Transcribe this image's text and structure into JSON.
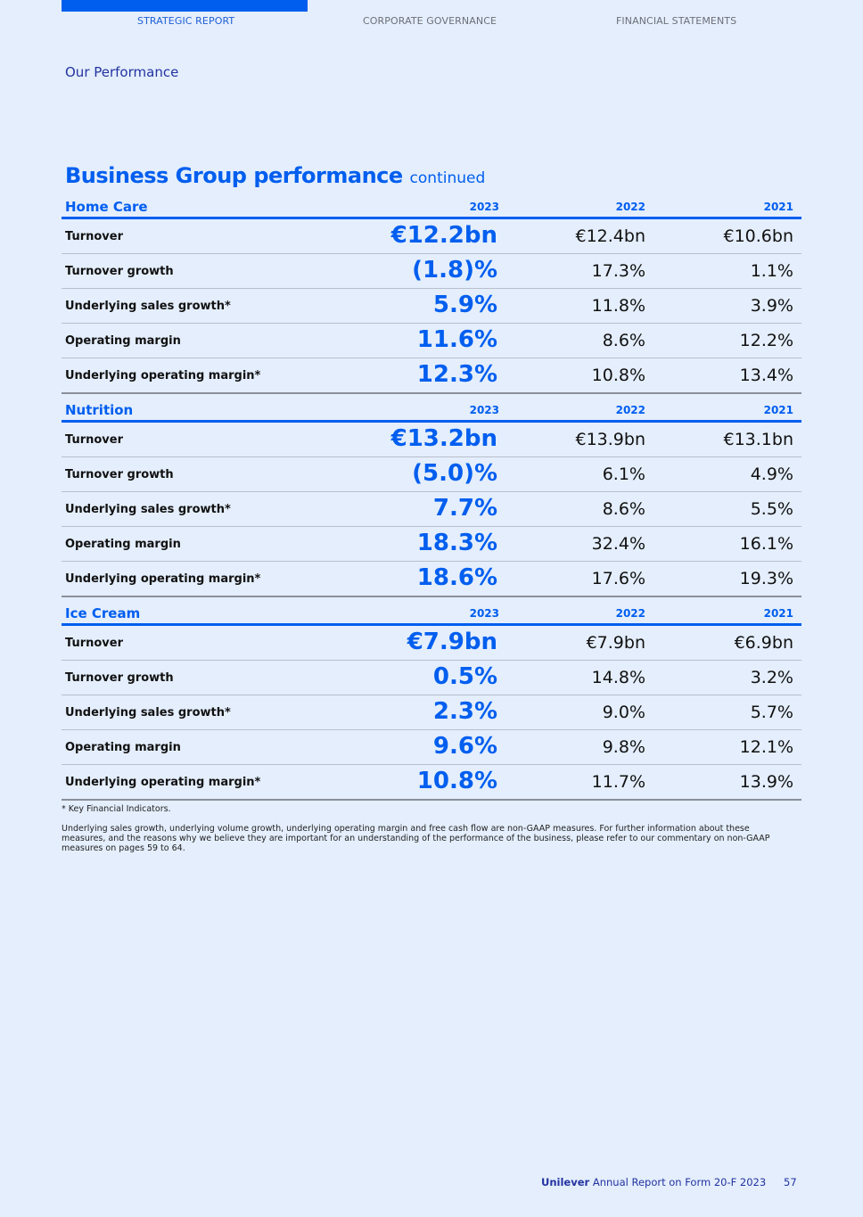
{
  "nav": {
    "items": [
      "STRATEGIC REPORT",
      "CORPORATE GOVERNANCE",
      "FINANCIAL STATEMENTS"
    ],
    "active": "STRATEGIC REPORT"
  },
  "section_label": "Our Performance",
  "title": {
    "main": "Business Group performance",
    "suffix": "continued"
  },
  "years": [
    "2023",
    "2022",
    "2021"
  ],
  "groups": [
    {
      "name": "Home Care",
      "rows": [
        {
          "label": "Turnover",
          "values": [
            "€12.2bn",
            "€12.4bn",
            "€10.6bn"
          ]
        },
        {
          "label": "Turnover growth",
          "values": [
            "(1.8)%",
            "17.3%",
            "1.1%"
          ]
        },
        {
          "label": "Underlying sales growth*",
          "values": [
            "5.9%",
            "11.8%",
            "3.9%"
          ]
        },
        {
          "label": "Operating margin",
          "values": [
            "11.6%",
            "8.6%",
            "12.2%"
          ]
        },
        {
          "label": "Underlying operating margin*",
          "values": [
            "12.3%",
            "10.8%",
            "13.4%"
          ]
        }
      ]
    },
    {
      "name": "Nutrition",
      "rows": [
        {
          "label": "Turnover",
          "values": [
            "€13.2bn",
            "€13.9bn",
            "€13.1bn"
          ]
        },
        {
          "label": "Turnover growth",
          "values": [
            "(5.0)%",
            "6.1%",
            "4.9%"
          ]
        },
        {
          "label": "Underlying sales growth*",
          "values": [
            "7.7%",
            "8.6%",
            "5.5%"
          ]
        },
        {
          "label": "Operating margin",
          "values": [
            "18.3%",
            "32.4%",
            "16.1%"
          ]
        },
        {
          "label": "Underlying operating margin*",
          "values": [
            "18.6%",
            "17.6%",
            "19.3%"
          ]
        }
      ]
    },
    {
      "name": "Ice Cream",
      "rows": [
        {
          "label": "Turnover",
          "values": [
            "€7.9bn",
            "€7.9bn",
            "€6.9bn"
          ]
        },
        {
          "label": "Turnover growth",
          "values": [
            "0.5%",
            "14.8%",
            "3.2%"
          ]
        },
        {
          "label": "Underlying sales growth*",
          "values": [
            "2.3%",
            "9.0%",
            "5.7%"
          ]
        },
        {
          "label": "Operating margin",
          "values": [
            "9.6%",
            "9.8%",
            "12.1%"
          ]
        },
        {
          "label": "Underlying operating margin*",
          "values": [
            "10.8%",
            "11.7%",
            "13.9%"
          ]
        }
      ]
    }
  ],
  "notes": {
    "kfi": "* Key Financial Indicators.",
    "nongaap": "Underlying sales growth, underlying volume growth, underlying operating margin and free cash flow are non-GAAP measures. For further information about these measures, and the reasons why we believe they are important for an understanding of the performance of the business, please refer to our commentary on non-GAAP measures on pages 59 to 64."
  },
  "footer": {
    "brand": "Unilever",
    "text": "Annual Report on Form 20-F 2023",
    "page": "57"
  },
  "colors": {
    "accent": "#005eef",
    "background": "#e4eefc",
    "navy": "#2233a0"
  }
}
